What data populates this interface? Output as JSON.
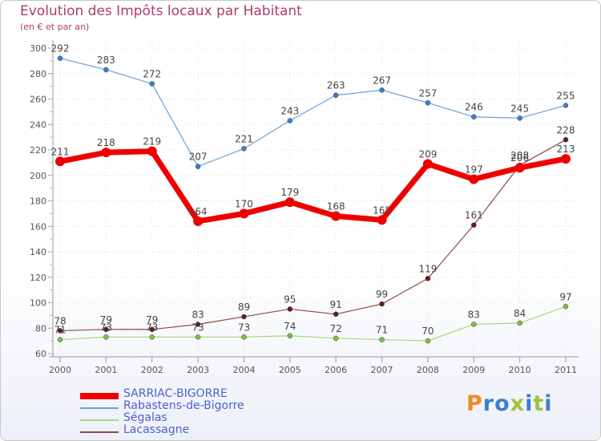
{
  "header": {
    "title": "Evolution des Impôts locaux par Habitant",
    "subtitle": "(en € et par an)"
  },
  "logo": {
    "text": "Proxiti",
    "colors": [
      "#f08a24",
      "#3a7fd0",
      "#3a7fd0",
      "#9cc43a",
      "#3a7fd0",
      "#9cc43a",
      "#3a7fd0"
    ]
  },
  "chart_data": {
    "type": "line",
    "title": "Evolution des Impôts locaux par Habitant",
    "subtitle": "(en € et par an)",
    "xlabel": "",
    "ylabel": "",
    "x": [
      "2000",
      "2001",
      "2002",
      "2003",
      "2004",
      "2005",
      "2006",
      "2007",
      "2008",
      "2009",
      "2010",
      "2011"
    ],
    "ylim": [
      60,
      300
    ],
    "yticks": [
      60,
      80,
      100,
      120,
      140,
      160,
      180,
      200,
      220,
      240,
      260,
      280,
      300
    ],
    "grid": true,
    "legend_position": "bottom-left",
    "series": [
      {
        "name": "SARRIAC-BIGORRE",
        "color": "#ee0000",
        "marker_color": "#ee0000",
        "values": [
          211,
          218,
          219,
          164,
          170,
          179,
          168,
          165,
          209,
          197,
          206,
          213
        ]
      },
      {
        "name": "Rabastens-de-Bigorre",
        "color": "#6aa0d8",
        "marker_color": "#3f7fcf",
        "values": [
          292,
          283,
          272,
          207,
          221,
          243,
          263,
          267,
          257,
          246,
          245,
          255
        ]
      },
      {
        "name": "Ségalas",
        "color": "#a8d878",
        "marker_color": "#7cc440",
        "values": [
          71,
          73,
          73,
          73,
          73,
          74,
          72,
          71,
          70,
          83,
          84,
          97
        ]
      },
      {
        "name": "Lacassagne",
        "color": "#8c4a4a",
        "marker_color": "#6a1a1a",
        "values": [
          78,
          79,
          79,
          83,
          89,
          95,
          91,
          99,
          119,
          161,
          208,
          228
        ]
      }
    ]
  }
}
